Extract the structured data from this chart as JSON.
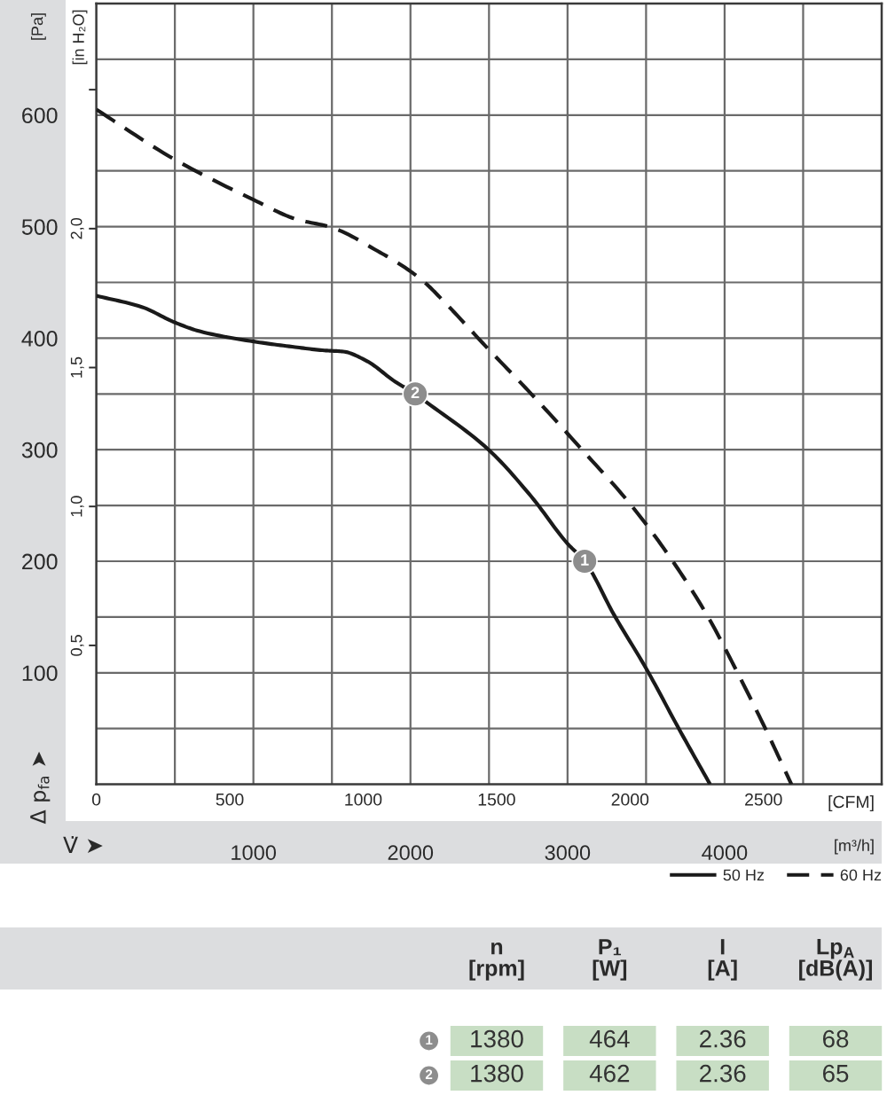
{
  "chart_data": [
    {
      "type": "line",
      "ylabel": "[Pa]",
      "y2label": "[in H₂O]",
      "xlabel": "[CFM]",
      "x2label": "[m³/h]",
      "annotations": [
        "Δ p$_{fa}$ ➤",
        "V̇ ➤",
        {
          "text": "1",
          "x": 1830,
          "y": 200
        },
        {
          "text": "2",
          "x": 1195,
          "y": 350
        }
      ],
      "series": [
        {
          "name": "50 Hz",
          "color": "#1a1a1a",
          "line_style": "solid",
          "x": [
            0,
            170,
            295,
            390,
            590,
            745,
            855,
            925,
            1010,
            1120,
            1195,
            1235,
            1470,
            1630,
            1765,
            1830,
            1940,
            2060,
            2185,
            2300
          ],
          "values": [
            438,
            428,
            414,
            406,
            397,
            392,
            389,
            388,
            380,
            361,
            350,
            343,
            300,
            258,
            216,
            200,
            152,
            104,
            49,
            0
          ]
        },
        {
          "name": "60 Hz",
          "color": "#1a1a1a",
          "line_style": "dashed",
          "x": [
            0,
            295,
            590,
            745,
            885,
            1055,
            1165,
            1235,
            1290,
            1470,
            1630,
            1820,
            2005,
            2160,
            2295,
            2405,
            2505,
            2605
          ],
          "values": [
            605,
            560,
            524,
            507,
            499,
            478,
            462,
            449,
            436,
            390,
            350,
            300,
            250,
            200,
            149,
            99,
            51,
            0
          ]
        }
      ],
      "xlim": [
        0,
        2943
      ],
      "xticks": [
        0,
        500,
        1000,
        1500,
        2000,
        2500
      ],
      "x2lim": [
        0,
        5000
      ],
      "x2ticks": [
        {
          "value": 500,
          "label": null
        },
        1000,
        {
          "value": 1500,
          "label": null
        },
        2000,
        {
          "value": 2500,
          "label": null
        },
        3000,
        {
          "value": 3500,
          "label": null
        },
        4000,
        {
          "value": 4500,
          "label": null
        }
      ],
      "ylim": [
        0,
        700
      ],
      "yticks": [
        {
          "value": 50,
          "label": null
        },
        100,
        {
          "value": 150,
          "label": null
        },
        200,
        {
          "value": 250,
          "label": null
        },
        300,
        {
          "value": 350,
          "label": null
        },
        400,
        {
          "value": 450,
          "label": null
        },
        500,
        {
          "value": 550,
          "label": null
        },
        600,
        {
          "value": 650,
          "label": null
        }
      ],
      "y2lim": [
        0,
        2.81
      ],
      "y2ticks": [
        {
          "value": 0.5,
          "label": "0,5"
        },
        {
          "value": 1.0,
          "label": "1,0"
        },
        {
          "value": 1.5,
          "label": "1,5"
        },
        {
          "value": 2.0,
          "label": "2,0"
        },
        {
          "value": 2.5,
          "label": null
        }
      ],
      "grid": true,
      "legend": "bottom right"
    },
    {
      "type": "other",
      "categories": [
        "n\n[rpm]",
        "P₁\n[W]",
        "I\n[A]",
        "Lp$_{A}$\n[dB(A)]"
      ],
      "series": [
        {
          "name": "1",
          "color": "#c8dec4",
          "values": [
            1380,
            464,
            2.36,
            68
          ]
        },
        {
          "name": "2",
          "color": "#c8dec4",
          "values": [
            1380,
            462,
            2.36,
            65
          ]
        }
      ],
      "data_labels": true
    }
  ]
}
